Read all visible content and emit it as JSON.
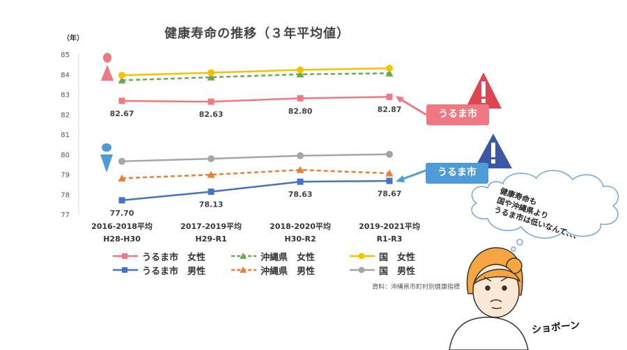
{
  "title": "健康寿命の推移（３年平均値）",
  "unit": "（年）",
  "source": "資料：沖縄県市町村別健康指標",
  "callout_female": "うるま市",
  "callout_male": "うるま市",
  "bubble_lines": [
    "健康寿命も",
    "国や沖縄県より",
    "うるま市は低いなんて、、、"
  ],
  "sigh": "ショボーン",
  "colors": {
    "uruma_female": "#f07882",
    "okinawa_female": "#6aa84f",
    "kuni_female": "#f5c100",
    "uruma_male": "#4472c4",
    "okinawa_male": "#ed7d31",
    "kuni_male": "#a5a5a5",
    "warn_red": "#e0444e",
    "warn_blue": "#3b58a8"
  },
  "icons": [
    "female-icon",
    "male-icon",
    "warning-red-icon",
    "warning-blue-icon",
    "sad-girl-icon",
    "thought-bubble-icon"
  ],
  "chart_data": {
    "type": "line",
    "categories": [
      "2016-2018平均",
      "2017-2019平均",
      "2018-2020平均",
      "2019-2021平均"
    ],
    "categories_sub": [
      "H28-H30",
      "H29-R1",
      "H30-R2",
      "R1-R3"
    ],
    "ylim": [
      77,
      85
    ],
    "yticks": [
      77,
      78,
      79,
      80,
      81,
      82,
      83,
      84,
      85
    ],
    "grid": false,
    "legend_position": "bottom",
    "series": [
      {
        "name": "うるま市　女性",
        "values": [
          82.67,
          82.63,
          82.8,
          82.87
        ],
        "color": "#f07882",
        "marker": "square",
        "dash": false,
        "labels": [
          "82.67",
          "82.63",
          "82.80",
          "82.87"
        ]
      },
      {
        "name": "沖縄県　女性",
        "values": [
          83.7,
          83.85,
          84.0,
          84.05
        ],
        "color": "#6aa84f",
        "marker": "triangle",
        "dash": true
      },
      {
        "name": "国　女性",
        "values": [
          83.95,
          84.08,
          84.22,
          84.3
        ],
        "color": "#f5c100",
        "marker": "circle",
        "dash": false
      },
      {
        "name": "うるま市　男性",
        "values": [
          77.7,
          78.13,
          78.63,
          78.67
        ],
        "color": "#4472c4",
        "marker": "square",
        "dash": false,
        "labels": [
          "77.70",
          "78.13",
          "78.63",
          "78.67"
        ]
      },
      {
        "name": "沖縄県　男性",
        "values": [
          78.8,
          78.98,
          79.22,
          79.05
        ],
        "color": "#ed7d31",
        "marker": "triangle",
        "dash": true
      },
      {
        "name": "国　男性",
        "values": [
          79.65,
          79.78,
          79.93,
          80.0
        ],
        "color": "#a5a5a5",
        "marker": "circle",
        "dash": false
      }
    ]
  }
}
